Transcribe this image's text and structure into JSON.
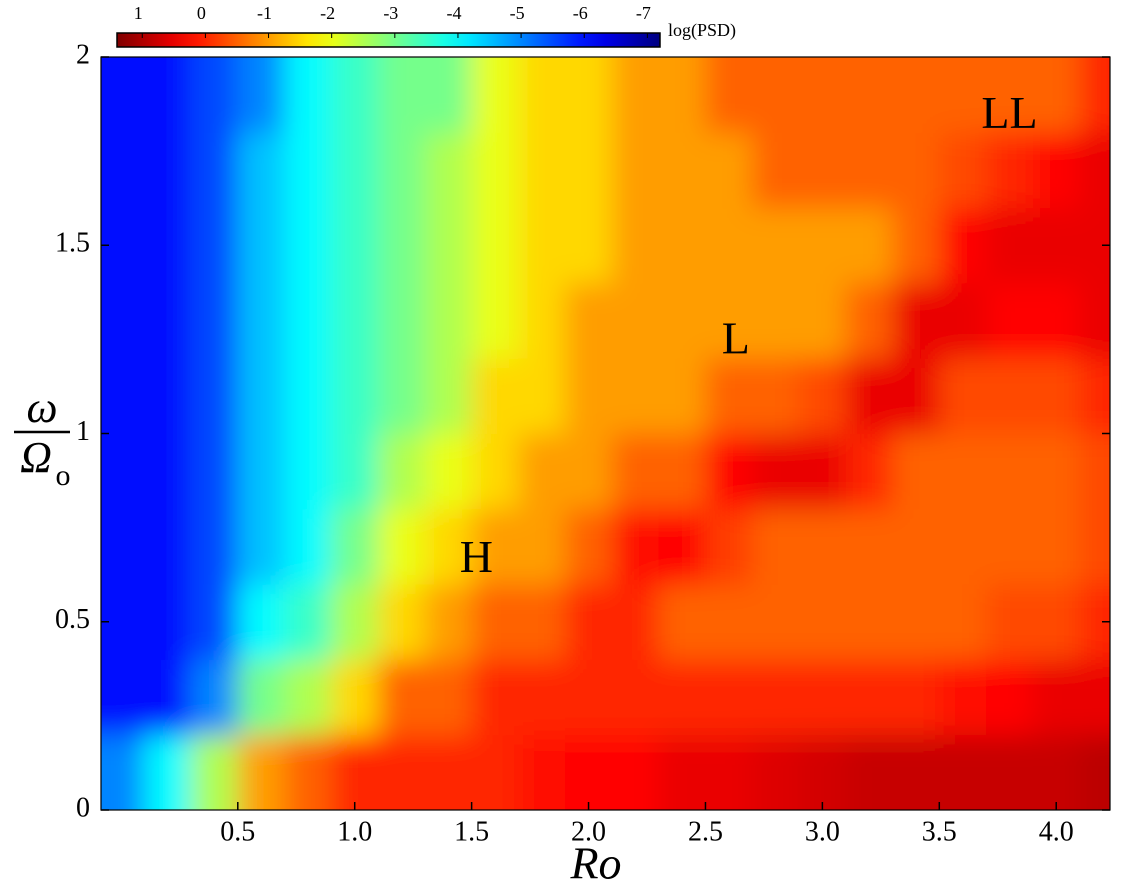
{
  "chart_data": {
    "type": "heatmap",
    "colormap": "jet",
    "colorbar_label": "log(PSD)",
    "clim": [
      1.4,
      -7.2
    ],
    "cticks": [
      1,
      0,
      -1,
      -2,
      -3,
      -4,
      -5,
      -6,
      -7
    ],
    "xlabel": "Ro",
    "ylabel": {
      "numerator": "ω",
      "denominator": "Ω",
      "subscript": "o"
    },
    "xlim": [
      -0.085,
      4.23
    ],
    "ylim": [
      0,
      2
    ],
    "xticks": [
      0.5,
      {
        "value": 1,
        "label": "1.0"
      },
      1.5,
      {
        "value": 2,
        "label": "2.0"
      },
      2.5,
      {
        "value": 3,
        "label": "3.0"
      },
      3.5,
      {
        "value": 4,
        "label": "4.0"
      }
    ],
    "yticks": [
      0,
      0.5,
      1,
      1.5,
      2
    ],
    "x": [
      0,
      0.2,
      0.4,
      0.6,
      0.8,
      1.0,
      1.2,
      1.4,
      1.6,
      1.8,
      2.0,
      2.2,
      2.4,
      2.6,
      2.8,
      3.0,
      3.2,
      3.4,
      3.6,
      3.8,
      4.0,
      4.2
    ],
    "y": [
      0.1,
      0.3,
      0.5,
      0.7,
      0.9,
      1.1,
      1.3,
      1.5,
      1.7,
      1.9
    ],
    "values": [
      [
        -5,
        -6,
        -6,
        -6,
        -6,
        -6,
        -6,
        -6,
        -6,
        -6
      ],
      [
        -4,
        -6,
        -6,
        -6,
        -6,
        -6,
        -6,
        -6,
        -6,
        -6
      ],
      [
        -2.5,
        -5,
        -5.5,
        -5.5,
        -5.5,
        -5.5,
        -5.5,
        -5.5,
        -5.5,
        -5.5
      ],
      [
        -1,
        -3,
        -4,
        -4.5,
        -4.5,
        -4.5,
        -4.5,
        -4.5,
        -4.5,
        -5
      ],
      [
        -0.5,
        -2.5,
        -3.5,
        -4,
        -4,
        -4,
        -4,
        -4,
        -4,
        -4
      ],
      [
        0,
        -1.5,
        -2.5,
        -3,
        -3.5,
        -3.5,
        -3.5,
        -3.5,
        -3.5,
        -3.5
      ],
      [
        0,
        -0.5,
        -1.5,
        -2,
        -2.5,
        -3,
        -3,
        -3,
        -3,
        -3
      ],
      [
        0,
        -0.5,
        -1,
        -1.5,
        -2,
        -2.5,
        -2.5,
        -2.5,
        -2.5,
        -3
      ],
      [
        0,
        0,
        -0.5,
        -1,
        -1.5,
        -1.5,
        -2,
        -2,
        -2,
        -2
      ],
      [
        0.2,
        0,
        -0.5,
        -1,
        -1,
        -1.5,
        -1.5,
        -1.5,
        -1.5,
        -1.5
      ],
      [
        0.3,
        0,
        0,
        -0.5,
        -1,
        -1,
        -1,
        -1.5,
        -1.5,
        -1.5
      ],
      [
        0.3,
        0,
        0,
        0.2,
        -0.5,
        -1,
        -1,
        -1,
        -1,
        -1
      ],
      [
        0.5,
        0,
        -0.5,
        0.3,
        -0.5,
        -1,
        -1,
        -1,
        -1,
        -1
      ],
      [
        0.5,
        0,
        -0.5,
        -0.2,
        0.3,
        -0.5,
        -1,
        -1,
        -1,
        -0.5
      ],
      [
        0.6,
        0,
        -0.5,
        -0.5,
        0.5,
        -0.5,
        -1,
        -1,
        -0.5,
        -0.5
      ],
      [
        0.7,
        0,
        -0.5,
        -0.5,
        0.5,
        -0.3,
        -1,
        -1,
        -0.5,
        -0.5
      ],
      [
        0.8,
        0,
        -0.5,
        -0.5,
        0,
        0.5,
        -0.5,
        -1,
        -0.5,
        -0.5
      ],
      [
        0.8,
        0,
        -0.5,
        -0.5,
        -0.5,
        0.5,
        0.5,
        -0.5,
        -0.5,
        -0.5
      ],
      [
        0.8,
        0.2,
        -0.5,
        -0.5,
        -0.5,
        -0.3,
        0.5,
        0.3,
        -0.3,
        -0.5
      ],
      [
        0.8,
        0.3,
        -0.3,
        -0.5,
        -0.5,
        -0.3,
        0.3,
        0.5,
        0,
        -0.5
      ],
      [
        0.8,
        0.5,
        -0.3,
        -0.5,
        -0.5,
        -0.3,
        0.3,
        0.5,
        0.3,
        -0.5
      ],
      [
        0.9,
        0.5,
        0,
        -0.3,
        -0.3,
        0,
        0.5,
        0.5,
        0.5,
        0
      ]
    ],
    "annotations": [
      {
        "text": "H",
        "x": 1.52,
        "y": 0.66
      },
      {
        "text": "L",
        "x": 2.63,
        "y": 1.24
      },
      {
        "text": "LL",
        "x": 3.8,
        "y": 1.84
      }
    ]
  }
}
